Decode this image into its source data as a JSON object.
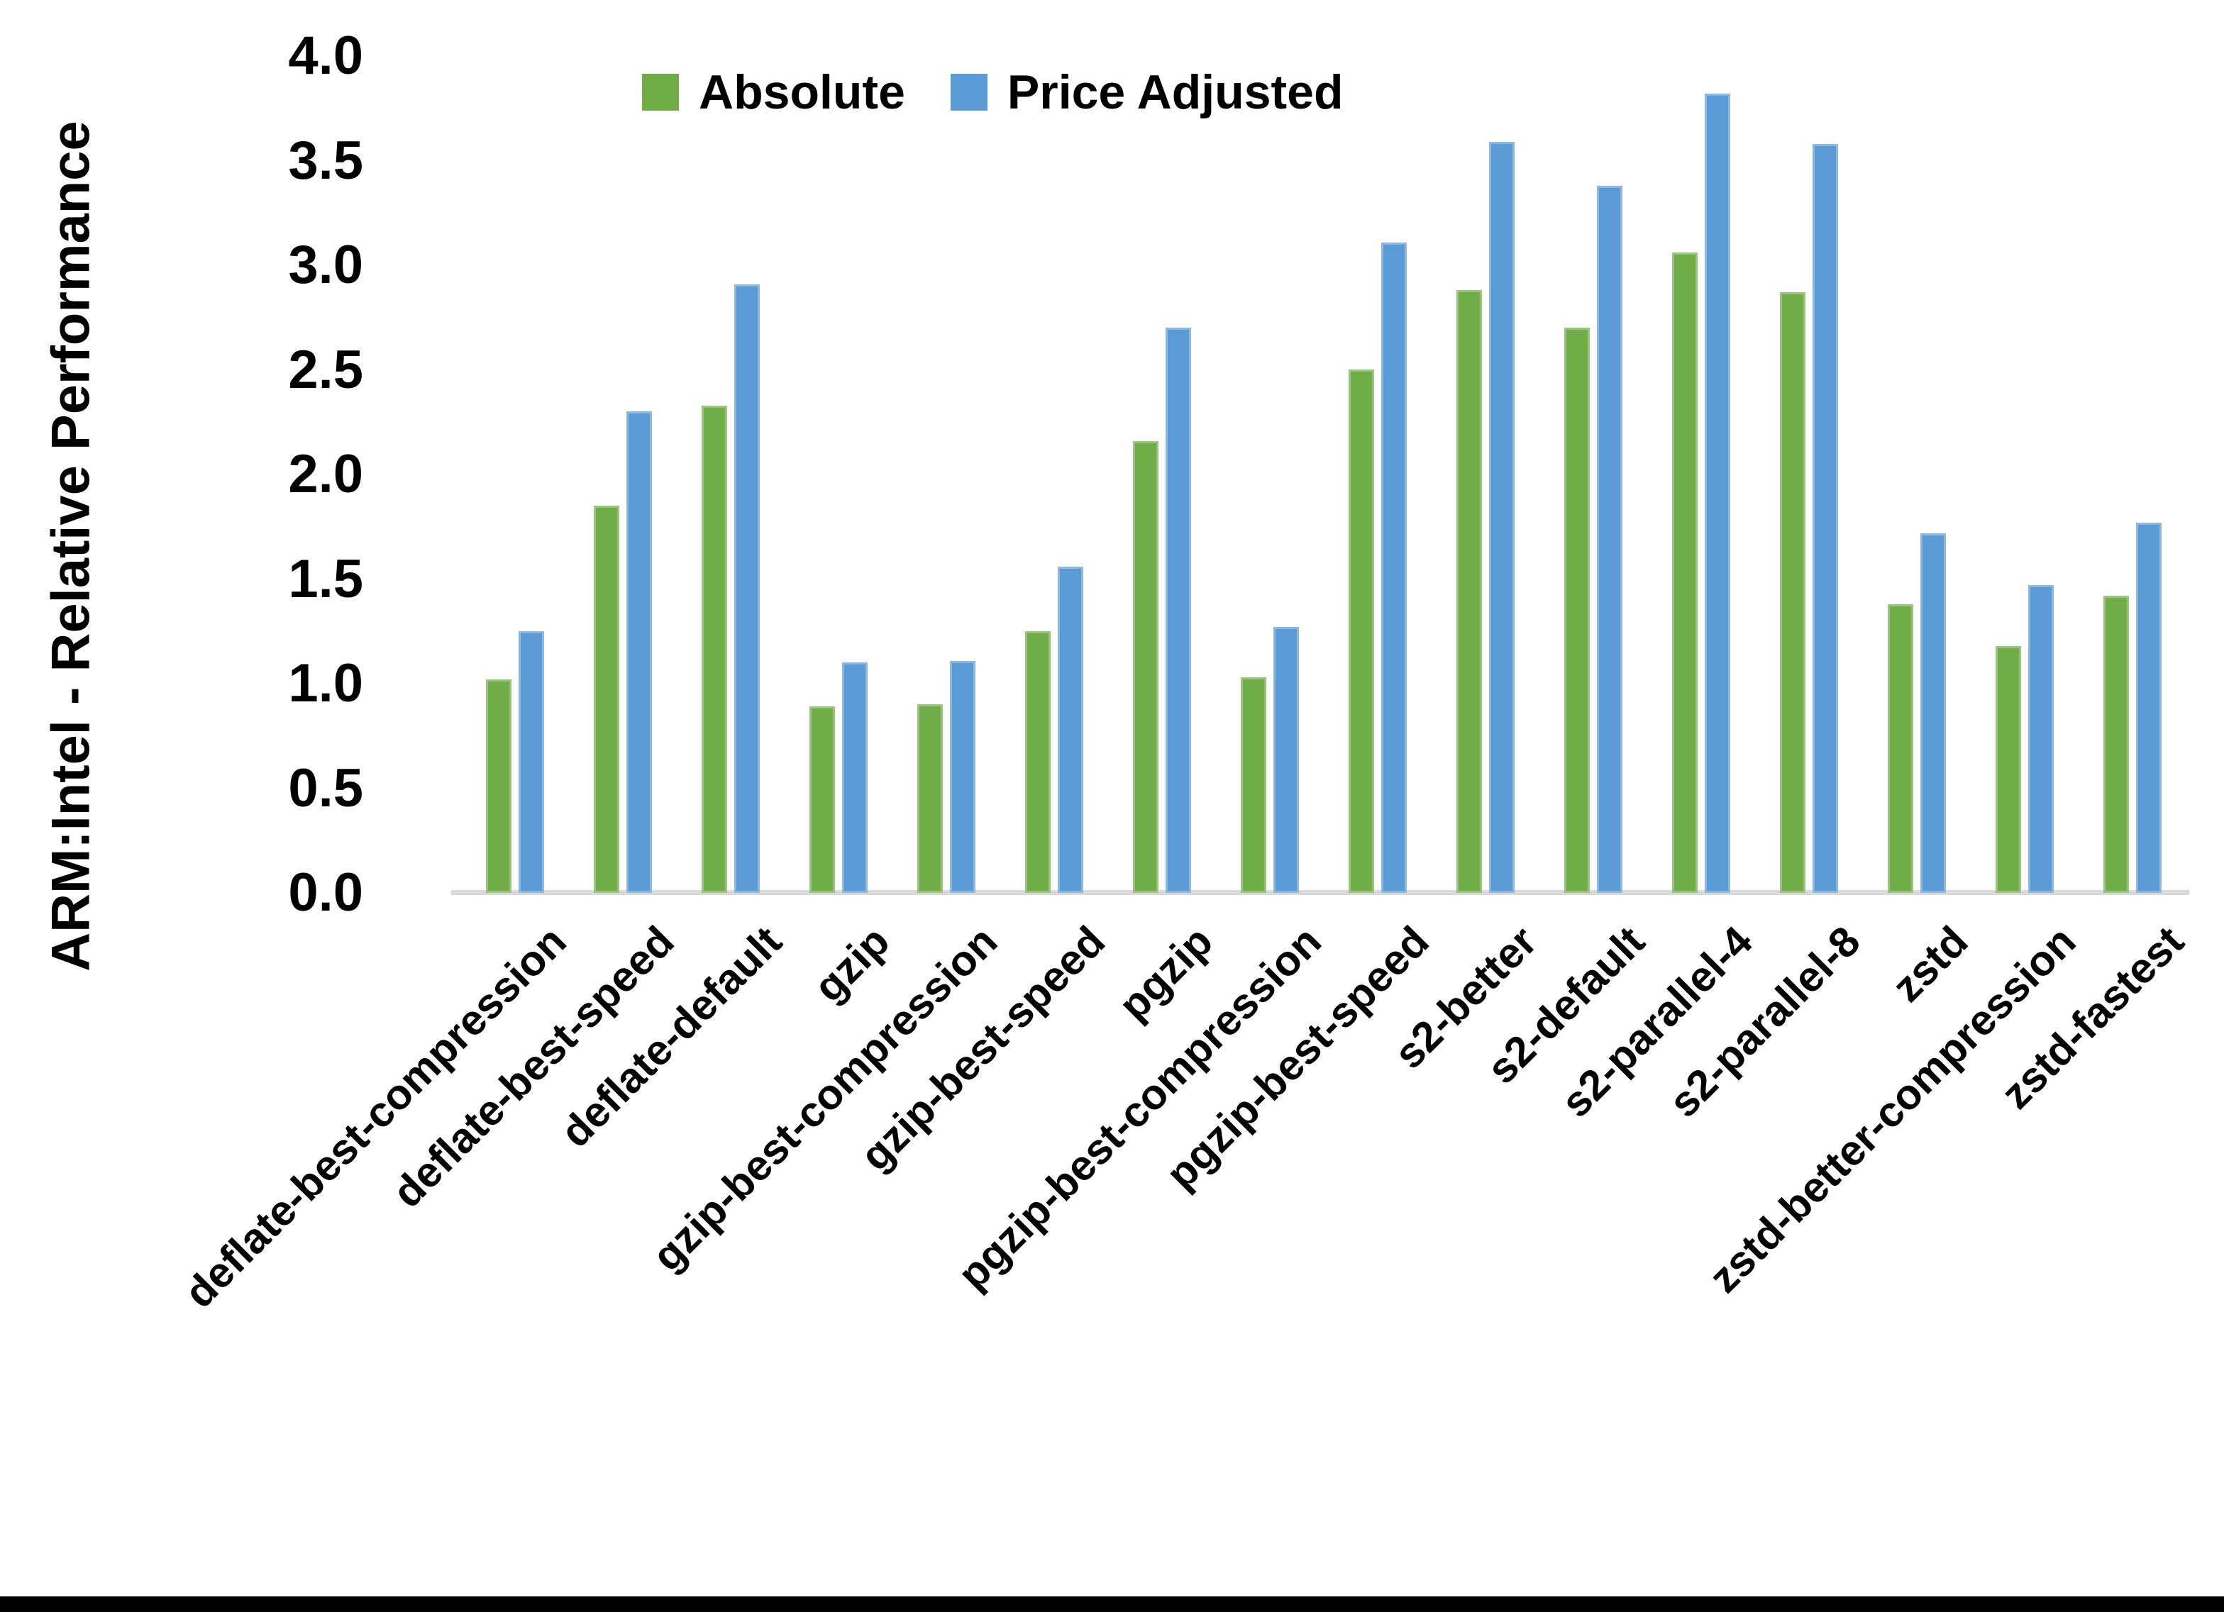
{
  "page": {
    "background": "#FFFFFF",
    "bottom_border_color": "#000000"
  },
  "chart_data": {
    "type": "bar",
    "title": "",
    "xlabel": "",
    "ylabel": "ARM:Intel - Relative Performance",
    "ylim": [
      0.0,
      4.0
    ],
    "ytick_interval": 0.5,
    "yticks": [
      "0.0",
      "0.5",
      "1.0",
      "1.5",
      "2.0",
      "2.5",
      "3.0",
      "3.5",
      "4.0"
    ],
    "grid": false,
    "legend_position": "top-center",
    "axis_line_color": "#D9D9D9",
    "categories": [
      "deflate-best-compression",
      "deflate-best-speed",
      "deflate-default",
      "gzip",
      "gzip-best-compression",
      "gzip-best-speed",
      "pgzip",
      "pgzip-best-compression",
      "pgzip-best-speed",
      "s2-better",
      "s2-default",
      "s2-parallel-4",
      "s2-parallel-8",
      "zstd",
      "zstd-better-compression",
      "zstd-fastest"
    ],
    "series": [
      {
        "name": "Absolute",
        "color": "#70AD47",
        "values": [
          1.02,
          1.85,
          2.33,
          0.89,
          0.9,
          1.25,
          2.16,
          1.03,
          2.5,
          2.88,
          2.7,
          3.06,
          2.87,
          1.38,
          1.18,
          1.42
        ]
      },
      {
        "name": "Price Adjusted",
        "color": "#5B9BD5",
        "values": [
          1.25,
          2.3,
          2.91,
          1.1,
          1.11,
          1.56,
          2.7,
          1.27,
          3.11,
          3.59,
          3.38,
          3.82,
          3.58,
          1.72,
          1.47,
          1.77
        ]
      }
    ]
  }
}
